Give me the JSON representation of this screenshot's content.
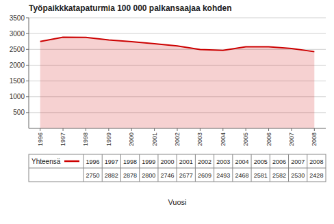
{
  "chart_data": {
    "type": "line",
    "title": "Työpaikkkatapaturmia 100 000 palkansaajaa kohden",
    "xlabel": "Vuosi",
    "x": [
      1996,
      1997,
      1998,
      1999,
      2000,
      2001,
      2002,
      2003,
      2004,
      2005,
      2006,
      2007,
      2008
    ],
    "series": [
      {
        "name": "Yhteensä",
        "color": "#cc0000",
        "values": [
          2750,
          2882,
          2878,
          2800,
          2746,
          2677,
          2609,
          2493,
          2468,
          2581,
          2582,
          2530,
          2428
        ]
      }
    ],
    "xlim": [
      1995.5,
      2008.5
    ],
    "xticks": [
      1996,
      1997,
      1998,
      1999,
      2000,
      2001,
      2002,
      2003,
      2004,
      2005,
      2006,
      2007,
      2008
    ],
    "ylim": [
      0,
      3500
    ],
    "yticks": [
      500,
      1000,
      1500,
      2000,
      2500,
      3000,
      3500
    ],
    "grid": true,
    "data_labels": true
  }
}
